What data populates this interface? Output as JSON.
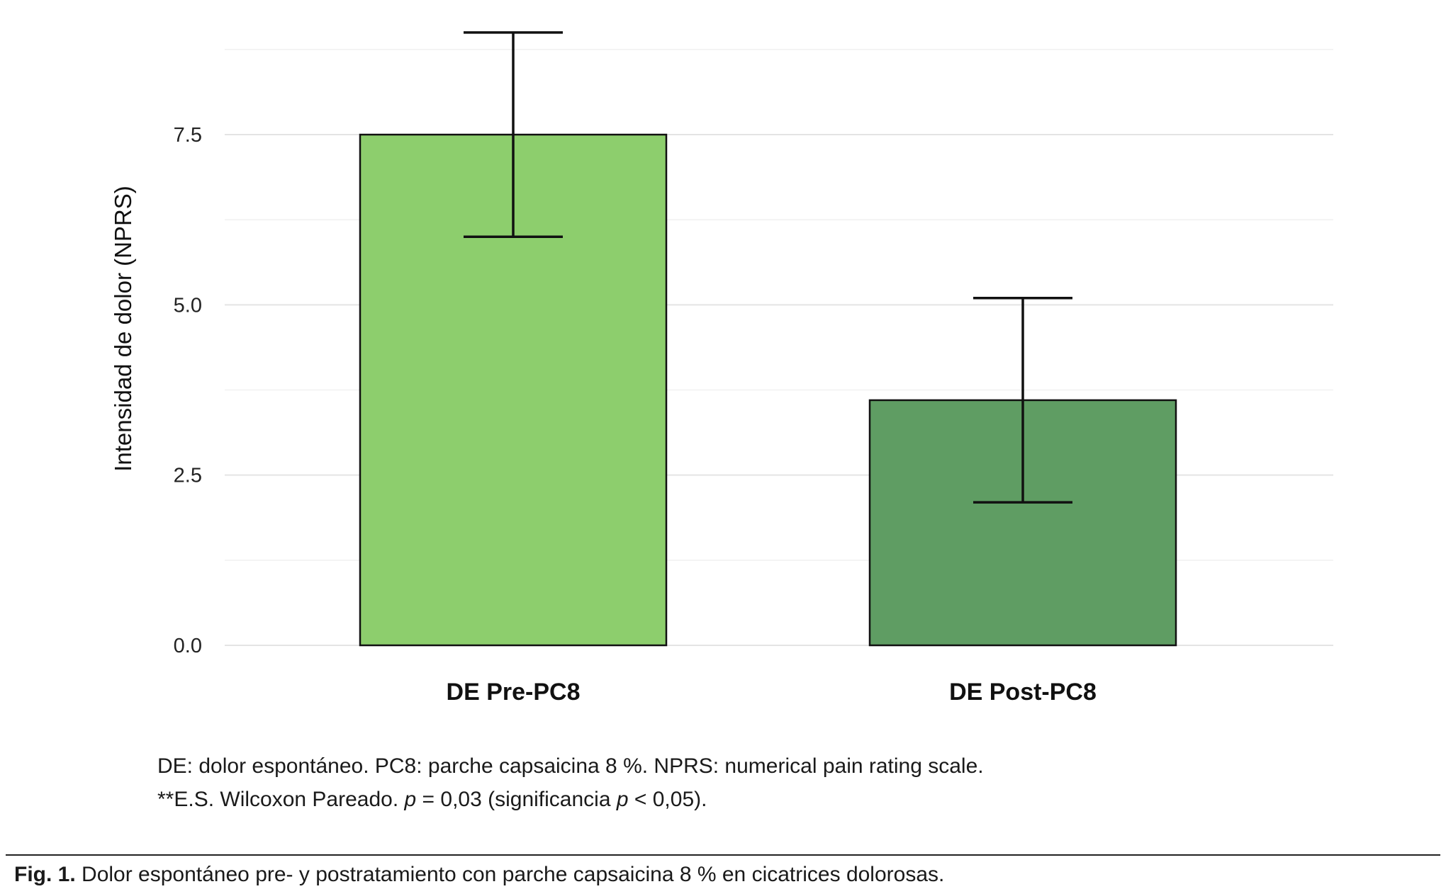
{
  "chart_data": {
    "type": "bar",
    "title": "",
    "xlabel": "",
    "ylabel": "Intensidad de dolor (NPRS)",
    "categories": [
      "DE Pre-PC8",
      "DE Post-PC8"
    ],
    "values": [
      7.5,
      3.6
    ],
    "error_bars": [
      {
        "low": 6.0,
        "high": 9.0
      },
      {
        "low": 2.1,
        "high": 5.1
      }
    ],
    "yticks": [
      0,
      2.5,
      5,
      7.5
    ],
    "ytick_labels": [
      "0.0",
      "2.5",
      "5.0",
      "7.5"
    ],
    "ylim": [
      0,
      9.3
    ],
    "grid": "horizontal-major-and-minor",
    "legend": "none",
    "bar_colors": [
      "#8dce6d",
      "#5f9d63"
    ],
    "bar_outline": "#111111",
    "errorbar_color": "#111111"
  },
  "notes": {
    "line1": "DE: dolor espontáneo. PC8: parche capsaicina 8 %. NPRS: numerical pain rating scale.",
    "line2_parts": [
      "**E.S. Wilcoxon Pareado. ",
      "p",
      " = 0,03 (significancia ",
      "p",
      " < 0,05)."
    ]
  },
  "figure_caption": {
    "label": "Fig. 1.",
    "text": " Dolor espontáneo pre- y postratamiento con parche capsaicina 8 % en cicatrices dolorosas."
  }
}
